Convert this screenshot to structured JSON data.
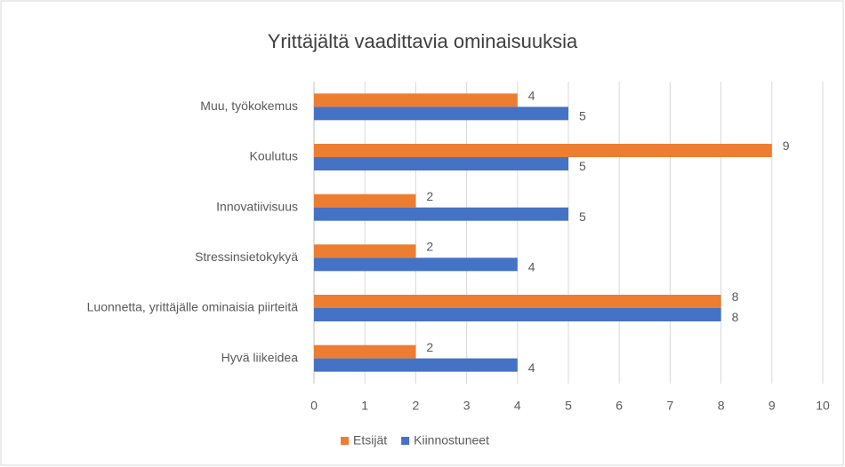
{
  "chart_data": {
    "type": "bar",
    "orientation": "horizontal",
    "title": "Yrittäjältä vaadittavia ominaisuuksia",
    "categories": [
      "Muu, työkokemus",
      "Koulutus",
      "Innovatiivisuus",
      "Stressinsietokykyä",
      "Luonnetta, yrittäjälle ominaisia piirteitä",
      "Hyvä liikeidea"
    ],
    "series": [
      {
        "name": "Etsijät",
        "color": "#ed7d31",
        "values": [
          4,
          9,
          2,
          2,
          8,
          2
        ]
      },
      {
        "name": "Kiinnostuneet",
        "color": "#4472c4",
        "values": [
          5,
          5,
          5,
          4,
          8,
          4
        ]
      }
    ],
    "xlim": [
      0,
      10
    ],
    "xticks": [
      0,
      1,
      2,
      3,
      4,
      5,
      6,
      7,
      8,
      9,
      10
    ],
    "grid": true,
    "legend": "bottom"
  }
}
